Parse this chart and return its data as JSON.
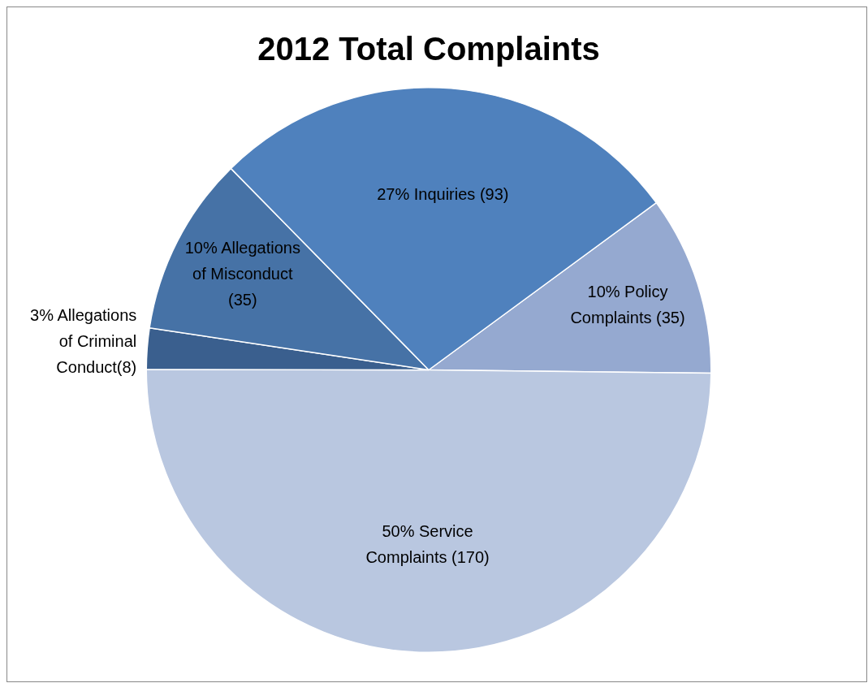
{
  "chart_data": {
    "type": "pie",
    "title": "2012 Total Complaints",
    "categories": [
      "10% Policy Complaints (35)",
      "50% Service Complaints (170)",
      "3% Allegations of Criminal Conduct(8)",
      "10% Allegations of Misconduct (35)",
      "27% Inquiries (93)"
    ],
    "values": [
      35,
      170,
      8,
      35,
      93
    ],
    "colors": [
      "#95a9d0",
      "#b9c7e0",
      "#3a5f8e",
      "#4672a6",
      "#4f81bd"
    ],
    "legend": false
  }
}
